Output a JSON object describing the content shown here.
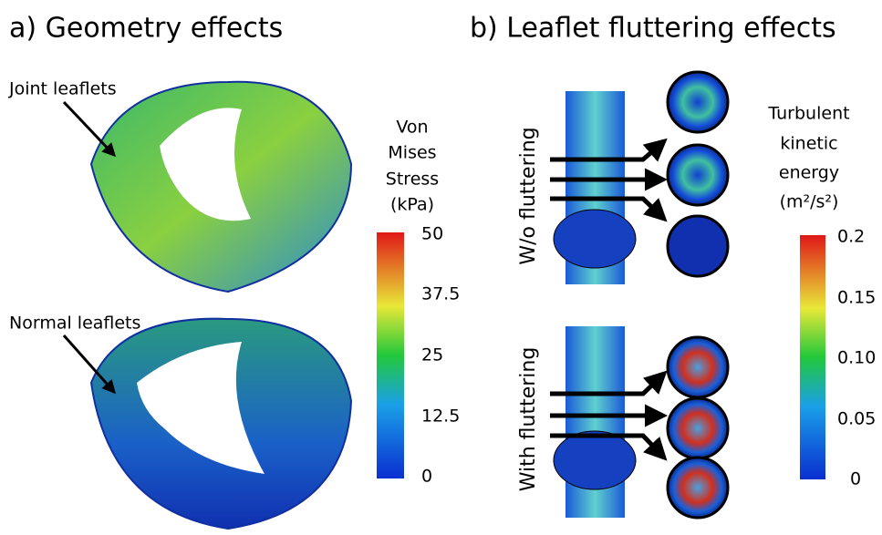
{
  "panels": [
    {
      "title": "a) Geometry effects",
      "annotations": [
        "Joint leaflets",
        "Normal leaflets"
      ],
      "colorbar": {
        "title": [
          "Von",
          "Mises",
          "Stress",
          "(kPa)"
        ],
        "ticks": [
          "50",
          "37.5",
          "25",
          "12.5",
          "0"
        ]
      }
    },
    {
      "title": "b) Leaflet fluttering effects",
      "row_labels": [
        "W/o fluttering",
        "With fluttering"
      ],
      "colorbar": {
        "title": [
          "Turbulent",
          "kinetic",
          "energy",
          "(m²/s²)"
        ],
        "ticks": [
          "0.2",
          "0.15",
          "0.10",
          "0.05",
          "0"
        ]
      }
    }
  ]
}
